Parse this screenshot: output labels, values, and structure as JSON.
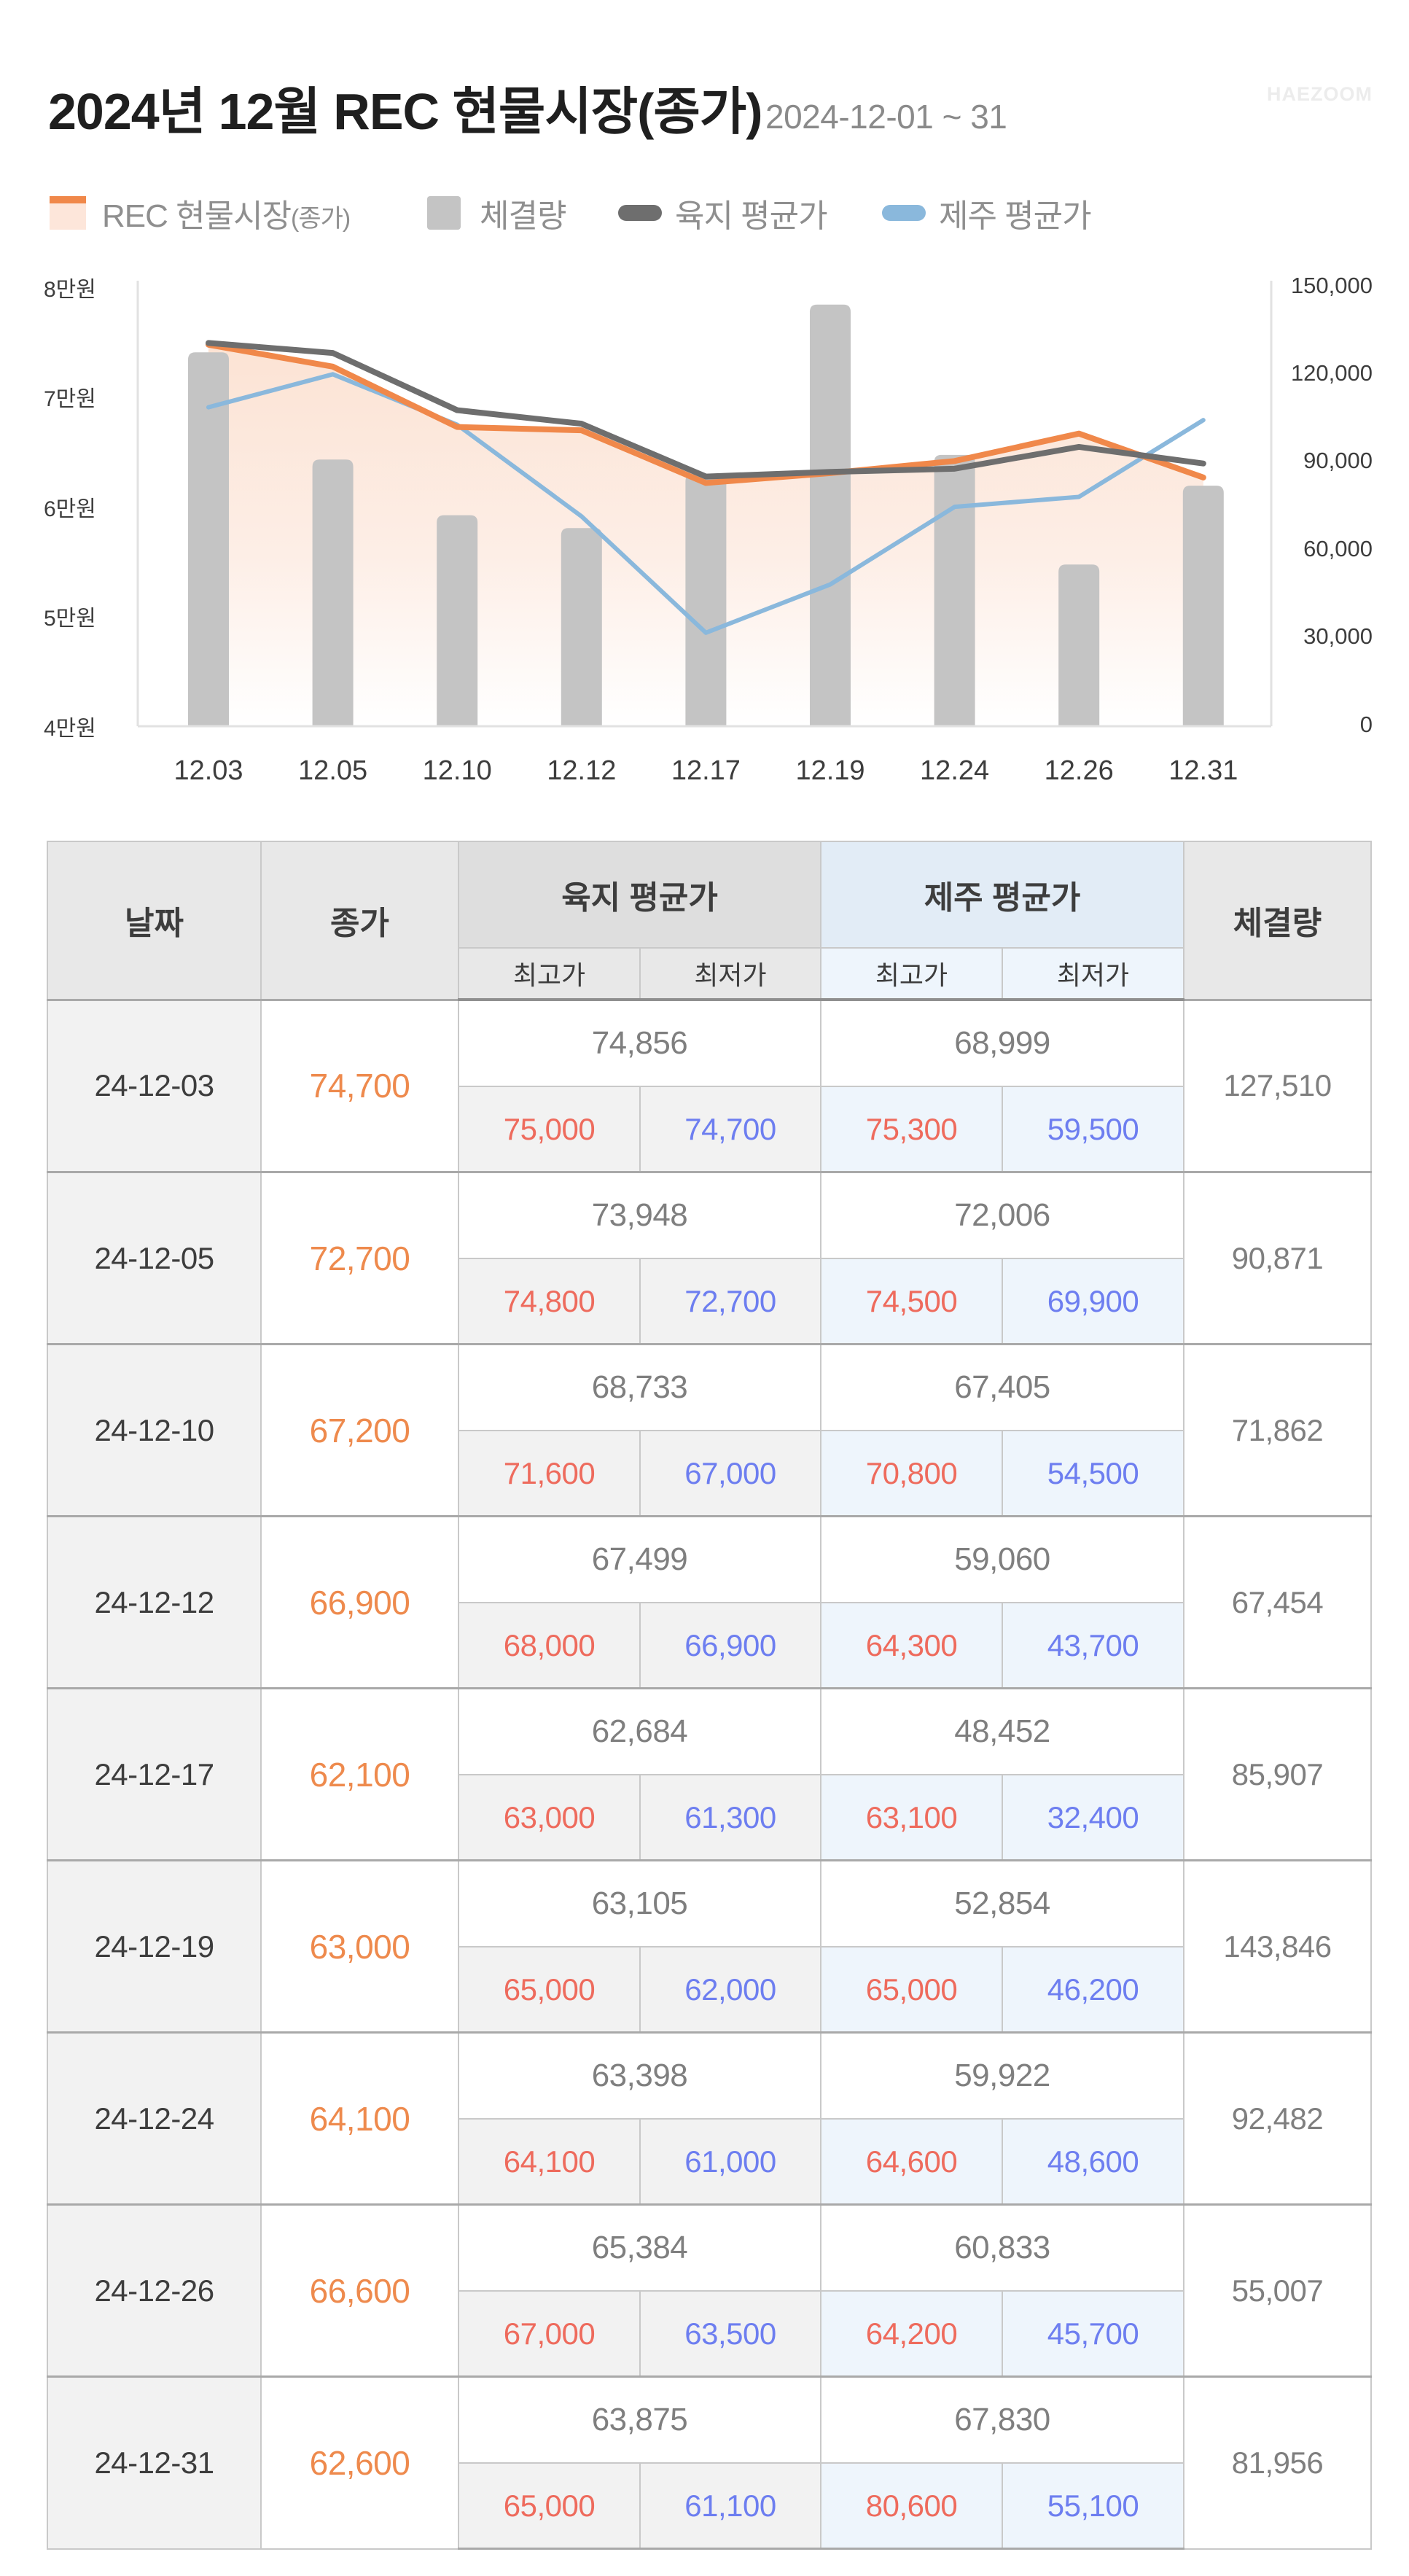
{
  "header": {
    "title": "2024년 12월 REC 현물시장(종가)",
    "date_range": "2024-12-01 ~ 31",
    "watermark": "HAEZOOM"
  },
  "legend": [
    {
      "label": "REC 현물시장",
      "suffix": "(종가)",
      "icon": "area-swatch-icon",
      "color": "#f0884a"
    },
    {
      "label": "체결량",
      "icon": "bar-swatch-icon",
      "color": "#c4c4c4"
    },
    {
      "label": "육지 평균가",
      "icon": "line-swatch-icon",
      "color": "#6e6e6e"
    },
    {
      "label": "제주 평균가",
      "icon": "line-swatch-icon",
      "color": "#8ab8dc"
    }
  ],
  "colors": {
    "close": "#f0884a",
    "close_fill": "#fce6da",
    "volume": "#c4c4c4",
    "land_avg": "#6e6e6e",
    "jeju_avg": "#8ab8dc",
    "high": "#ee6b5d",
    "low": "#6d7ef0"
  },
  "chart_data": {
    "type": "bar+line",
    "title": "2024년 12월 REC 현물시장(종가)",
    "subtitle": "2024-12-01 ~ 31",
    "categories": [
      "12.03",
      "12.05",
      "12.10",
      "12.12",
      "12.17",
      "12.19",
      "12.24",
      "12.26",
      "12.31"
    ],
    "left_axis": {
      "ticks": [
        "8만원",
        "7만원",
        "6만원",
        "5만원",
        "4만원"
      ],
      "range": [
        40000,
        80000
      ]
    },
    "right_axis": {
      "ticks": [
        "150,000",
        "120,000",
        "90,000",
        "60,000",
        "30,000",
        "0"
      ],
      "range": [
        0,
        150000
      ]
    },
    "series": [
      {
        "name": "REC 현물시장(종가)",
        "type": "area-line",
        "axis": "left",
        "values": [
          74700,
          72700,
          67200,
          66900,
          62100,
          63000,
          64100,
          66600,
          62600
        ]
      },
      {
        "name": "체결량",
        "type": "bar",
        "axis": "right",
        "values": [
          127510,
          90871,
          71862,
          67454,
          85907,
          143846,
          92482,
          55007,
          81956
        ]
      },
      {
        "name": "육지 평균가",
        "type": "line",
        "axis": "left",
        "values": [
          74856,
          73948,
          68733,
          67499,
          62684,
          63105,
          63398,
          65384,
          63875
        ]
      },
      {
        "name": "제주 평균가",
        "type": "line",
        "axis": "left",
        "values": [
          68999,
          72006,
          67405,
          59060,
          48452,
          52854,
          59922,
          60833,
          67830
        ]
      }
    ],
    "grid": false,
    "legend_position": "top-left"
  },
  "table": {
    "headers": {
      "date": "날짜",
      "close": "종가",
      "land_avg": "육지 평균가",
      "jeju_avg": "제주 평균가",
      "volume": "체결량",
      "high": "최고가",
      "low": "최저가"
    },
    "rows": [
      {
        "date": "24-12-03",
        "close": "74,700",
        "land_avg": "74,856",
        "land_high": "75,000",
        "land_low": "74,700",
        "jeju_avg": "68,999",
        "jeju_high": "75,300",
        "jeju_low": "59,500",
        "volume": "127,510"
      },
      {
        "date": "24-12-05",
        "close": "72,700",
        "land_avg": "73,948",
        "land_high": "74,800",
        "land_low": "72,700",
        "jeju_avg": "72,006",
        "jeju_high": "74,500",
        "jeju_low": "69,900",
        "volume": "90,871"
      },
      {
        "date": "24-12-10",
        "close": "67,200",
        "land_avg": "68,733",
        "land_high": "71,600",
        "land_low": "67,000",
        "jeju_avg": "67,405",
        "jeju_high": "70,800",
        "jeju_low": "54,500",
        "volume": "71,862"
      },
      {
        "date": "24-12-12",
        "close": "66,900",
        "land_avg": "67,499",
        "land_high": "68,000",
        "land_low": "66,900",
        "jeju_avg": "59,060",
        "jeju_high": "64,300",
        "jeju_low": "43,700",
        "volume": "67,454"
      },
      {
        "date": "24-12-17",
        "close": "62,100",
        "land_avg": "62,684",
        "land_high": "63,000",
        "land_low": "61,300",
        "jeju_avg": "48,452",
        "jeju_high": "63,100",
        "jeju_low": "32,400",
        "volume": "85,907"
      },
      {
        "date": "24-12-19",
        "close": "63,000",
        "land_avg": "63,105",
        "land_high": "65,000",
        "land_low": "62,000",
        "jeju_avg": "52,854",
        "jeju_high": "65,000",
        "jeju_low": "46,200",
        "volume": "143,846"
      },
      {
        "date": "24-12-24",
        "close": "64,100",
        "land_avg": "63,398",
        "land_high": "64,100",
        "land_low": "61,000",
        "jeju_avg": "59,922",
        "jeju_high": "64,600",
        "jeju_low": "48,600",
        "volume": "92,482"
      },
      {
        "date": "24-12-26",
        "close": "66,600",
        "land_avg": "65,384",
        "land_high": "67,000",
        "land_low": "63,500",
        "jeju_avg": "60,833",
        "jeju_high": "64,200",
        "jeju_low": "45,700",
        "volume": "55,007"
      },
      {
        "date": "24-12-31",
        "close": "62,600",
        "land_avg": "63,875",
        "land_high": "65,000",
        "land_low": "61,100",
        "jeju_avg": "67,830",
        "jeju_high": "80,600",
        "jeju_low": "55,100",
        "volume": "81,956"
      }
    ]
  }
}
